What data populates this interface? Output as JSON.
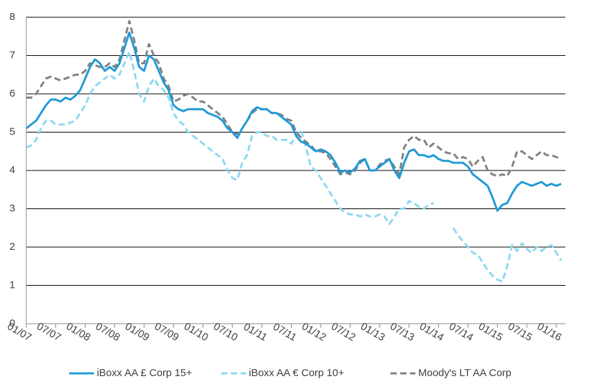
{
  "chart_data": {
    "type": "line",
    "categories": [
      "01/07",
      null,
      null,
      null,
      null,
      null,
      "07/07",
      null,
      null,
      null,
      null,
      null,
      "01/08",
      null,
      null,
      null,
      null,
      null,
      "07/08",
      null,
      null,
      null,
      null,
      null,
      "01/09",
      null,
      null,
      null,
      null,
      null,
      "07/09",
      null,
      null,
      null,
      null,
      null,
      "01/10",
      null,
      null,
      null,
      null,
      null,
      "07/10",
      null,
      null,
      null,
      null,
      null,
      "01/11",
      null,
      null,
      null,
      null,
      null,
      "07/11",
      null,
      null,
      null,
      null,
      null,
      "01/12",
      null,
      null,
      null,
      null,
      null,
      "07/12",
      null,
      null,
      null,
      null,
      null,
      "01/13",
      null,
      null,
      null,
      null,
      null,
      "07/13",
      null,
      null,
      null,
      null,
      null,
      "01/14",
      null,
      null,
      null,
      null,
      null,
      "07/14",
      null,
      null,
      null,
      null,
      null,
      "01/15",
      null,
      null,
      null,
      null,
      null,
      "07/15",
      null,
      null,
      null,
      null,
      null,
      "01/16",
      null
    ],
    "series": [
      {
        "name": "iBoxx AA £ Corp 15+",
        "color": "#1f9ad6",
        "dash": false,
        "values": [
          5.1,
          5.2,
          5.3,
          5.5,
          5.7,
          5.85,
          5.85,
          5.8,
          5.9,
          5.85,
          5.95,
          6.1,
          6.4,
          6.7,
          6.9,
          6.8,
          6.6,
          6.7,
          6.6,
          6.8,
          7.2,
          7.6,
          7.2,
          6.7,
          6.6,
          7.0,
          6.9,
          6.6,
          6.3,
          6.1,
          5.7,
          5.6,
          5.55,
          5.6,
          5.6,
          5.6,
          5.6,
          5.5,
          5.45,
          5.4,
          5.3,
          5.1,
          5.0,
          4.85,
          5.1,
          5.3,
          5.55,
          5.65,
          5.6,
          5.6,
          5.5,
          5.5,
          5.4,
          5.3,
          5.2,
          4.9,
          4.75,
          4.7,
          4.6,
          4.5,
          4.55,
          4.5,
          4.4,
          4.2,
          3.95,
          4.0,
          3.95,
          4.05,
          4.25,
          4.3,
          4.0,
          4.0,
          4.1,
          4.2,
          4.3,
          4.0,
          3.8,
          4.2,
          4.5,
          4.55,
          4.4,
          4.4,
          4.35,
          4.4,
          4.3,
          4.25,
          4.25,
          4.2,
          4.2,
          4.2,
          4.1,
          3.9,
          3.8,
          3.7,
          3.6,
          3.3,
          2.95,
          3.1,
          3.15,
          3.4,
          3.6,
          3.7,
          3.65,
          3.6,
          3.65,
          3.7,
          3.6,
          3.65,
          3.6,
          3.65
        ]
      },
      {
        "name": "iBoxx AA € Corp 10+",
        "color": "#8dd8f2",
        "dash": true,
        "values": [
          4.6,
          4.65,
          4.8,
          5.1,
          5.3,
          5.3,
          5.2,
          5.2,
          5.2,
          5.25,
          5.3,
          5.5,
          5.7,
          6.0,
          6.2,
          6.3,
          6.4,
          6.5,
          6.4,
          6.5,
          6.8,
          7.1,
          6.6,
          6.0,
          5.8,
          6.2,
          6.4,
          6.2,
          6.1,
          5.9,
          5.5,
          5.3,
          5.2,
          5.0,
          4.9,
          4.8,
          4.7,
          4.6,
          4.5,
          4.4,
          4.3,
          4.0,
          3.8,
          3.75,
          4.2,
          4.4,
          4.9,
          5.0,
          5.0,
          4.9,
          4.9,
          4.8,
          4.8,
          4.8,
          4.7,
          4.9,
          5.05,
          4.6,
          4.1,
          4.0,
          3.8,
          3.6,
          3.4,
          3.2,
          3.0,
          2.9,
          2.85,
          2.85,
          2.8,
          2.85,
          2.8,
          2.8,
          2.85,
          2.8,
          2.6,
          2.8,
          3.0,
          3.0,
          3.2,
          3.15,
          3.05,
          3.0,
          3.1,
          3.15,
          null,
          null,
          null,
          2.5,
          2.3,
          2.15,
          2.0,
          1.85,
          1.8,
          1.6,
          1.4,
          1.25,
          1.15,
          1.1,
          1.5,
          2.05,
          1.9,
          2.1,
          1.95,
          1.85,
          2.0,
          1.9,
          2.0,
          2.05,
          1.85,
          1.65
        ]
      },
      {
        "name": "Moody's LT AA Corp",
        "color": "#808080",
        "dash": true,
        "values": [
          5.9,
          5.9,
          6.0,
          6.2,
          6.4,
          6.45,
          6.4,
          6.35,
          6.4,
          6.45,
          6.5,
          6.5,
          6.6,
          6.8,
          6.75,
          6.7,
          6.7,
          6.8,
          6.7,
          6.9,
          7.4,
          7.9,
          7.4,
          6.8,
          6.8,
          7.3,
          7.0,
          6.8,
          6.4,
          6.2,
          5.8,
          5.85,
          5.95,
          6.0,
          5.9,
          5.8,
          5.8,
          5.7,
          5.6,
          5.5,
          5.4,
          5.2,
          5.0,
          4.95,
          5.1,
          5.3,
          5.5,
          5.6,
          5.6,
          5.6,
          5.5,
          5.5,
          5.45,
          5.35,
          5.3,
          5.0,
          4.85,
          4.75,
          4.65,
          4.5,
          4.5,
          4.45,
          4.3,
          4.1,
          3.9,
          3.95,
          3.9,
          4.0,
          4.2,
          4.3,
          4.0,
          4.0,
          4.15,
          4.25,
          4.3,
          4.1,
          3.9,
          4.6,
          4.8,
          4.9,
          4.8,
          4.8,
          4.6,
          4.7,
          4.6,
          4.5,
          4.45,
          4.45,
          4.3,
          4.35,
          4.3,
          4.1,
          4.25,
          4.35,
          4.0,
          3.9,
          3.85,
          3.9,
          3.85,
          4.1,
          4.5,
          4.5,
          4.4,
          4.3,
          4.4,
          4.5,
          4.4,
          4.4,
          4.35,
          4.3
        ]
      }
    ],
    "ylim": [
      0,
      8
    ],
    "yticks": [
      0,
      1,
      2,
      3,
      4,
      5,
      6,
      7,
      8
    ],
    "grid": true,
    "legend": "bottom"
  }
}
